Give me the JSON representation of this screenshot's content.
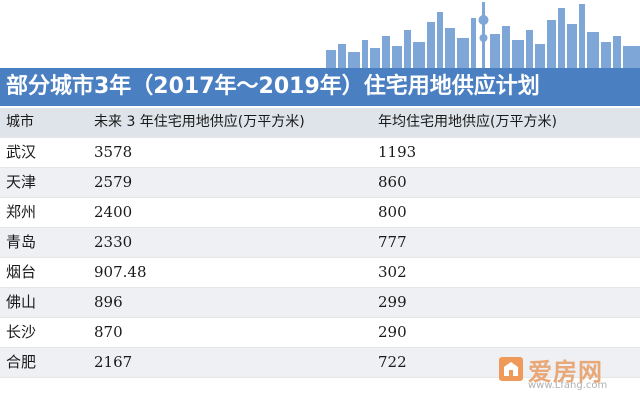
{
  "title": "部分城市3年（2017年～2019年）住宅用地供应计划",
  "headers": {
    "city": "城市",
    "total": "未来 3 年住宅用地供应(万平方米)",
    "annual": "年均住宅用地供应(万平方米)"
  },
  "rows": [
    {
      "city": "武汉",
      "total": "3578",
      "annual": "1193"
    },
    {
      "city": "天津",
      "total": "2579",
      "annual": "860"
    },
    {
      "city": "郑州",
      "total": "2400",
      "annual": "800"
    },
    {
      "city": "青岛",
      "total": "2330",
      "annual": "777"
    },
    {
      "city": "烟台",
      "total": "907.48",
      "annual": "302"
    },
    {
      "city": "佛山",
      "total": "896",
      "annual": "299"
    },
    {
      "city": "长沙",
      "total": "870",
      "annual": "290"
    },
    {
      "city": "合肥",
      "total": "2167",
      "annual": "722"
    }
  ],
  "watermark": {
    "brand": "爱房网",
    "url": "www.Lfang.com"
  },
  "colors": {
    "title_bg": "#4a7fc1",
    "skyline": "#7ea6d6",
    "header_bg": "#dfe4ea"
  }
}
